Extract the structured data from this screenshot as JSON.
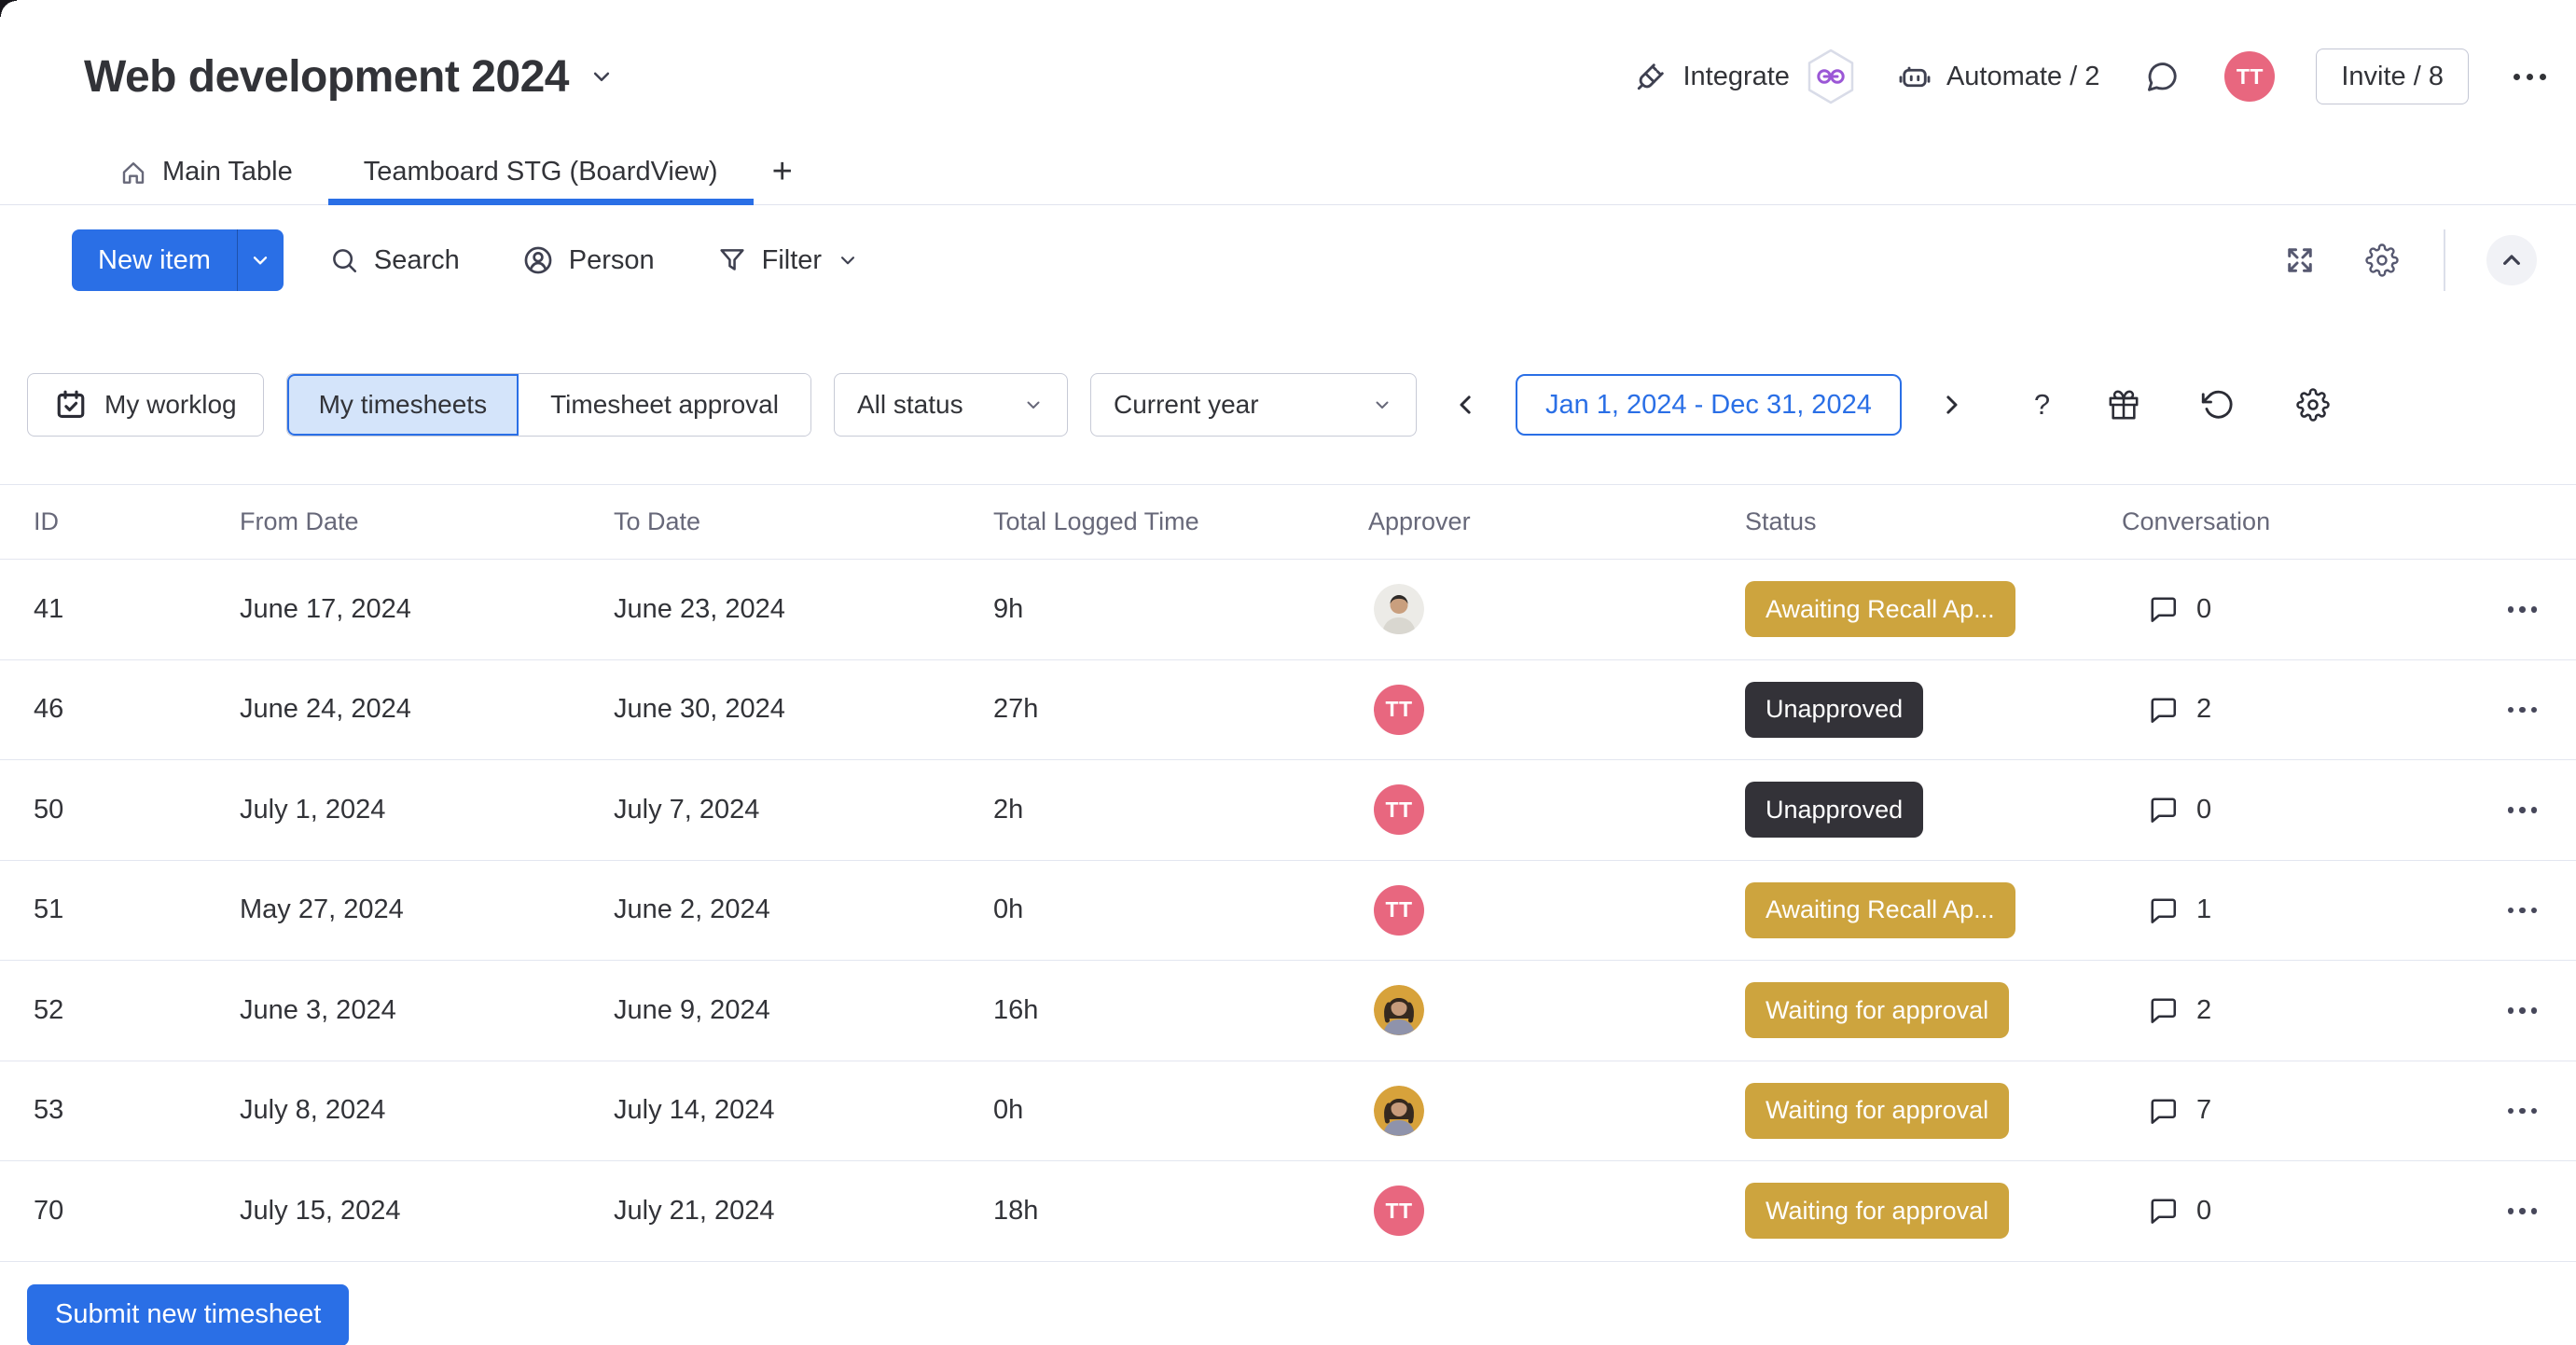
{
  "colors": {
    "accent": "#2a6fe6",
    "accent_light": "#d4e4fa",
    "gold": "#cda43e",
    "dark_chip": "#333238",
    "avatar_pink": "#e8677f",
    "text": "#323338",
    "muted": "#676879",
    "row_border": "#e3e6f0"
  },
  "header": {
    "title": "Web development 2024",
    "integrate_label": "Integrate",
    "automate_label": "Automate / 2",
    "invite_label": "Invite / 8",
    "avatar_initials": "TT"
  },
  "tabs": {
    "main_label": "Main Table",
    "board_label": "Teamboard STG (BoardView)",
    "add_label": "+"
  },
  "toolbar": {
    "new_item_label": "New item",
    "search_label": "Search",
    "person_label": "Person",
    "filter_label": "Filter"
  },
  "filters": {
    "my_worklog_label": "My worklog",
    "my_timesheets_label": "My timesheets",
    "timesheet_approval_label": "Timesheet approval",
    "status_value": "All status",
    "period_value": "Current year",
    "date_range_value": "Jan 1, 2024 - Dec 31, 2024",
    "help_label": "?"
  },
  "table": {
    "columns": [
      "ID",
      "From Date",
      "To Date",
      "Total Logged Time",
      "Approver",
      "Status",
      "Conversation"
    ],
    "rows": [
      {
        "id": "41",
        "from": "June 17, 2024",
        "to": "June 23, 2024",
        "total": "9h",
        "approver": {
          "type": "photo",
          "variant": "male"
        },
        "status": {
          "label": "Awaiting Recall Ap...",
          "color": "gold"
        },
        "conversation": "0"
      },
      {
        "id": "46",
        "from": "June 24, 2024",
        "to": "June 30, 2024",
        "total": "27h",
        "approver": {
          "type": "initials",
          "label": "TT"
        },
        "status": {
          "label": "Unapproved",
          "color": "dark"
        },
        "conversation": "2"
      },
      {
        "id": "50",
        "from": "July 1, 2024",
        "to": "July 7, 2024",
        "total": "2h",
        "approver": {
          "type": "initials",
          "label": "TT"
        },
        "status": {
          "label": "Unapproved",
          "color": "dark"
        },
        "conversation": "0"
      },
      {
        "id": "51",
        "from": "May 27, 2024",
        "to": "June 2, 2024",
        "total": "0h",
        "approver": {
          "type": "initials",
          "label": "TT"
        },
        "status": {
          "label": "Awaiting Recall Ap...",
          "color": "gold"
        },
        "conversation": "1"
      },
      {
        "id": "52",
        "from": "June 3, 2024",
        "to": "June 9, 2024",
        "total": "16h",
        "approver": {
          "type": "photo",
          "variant": "female"
        },
        "status": {
          "label": "Waiting for approval",
          "color": "gold"
        },
        "conversation": "2"
      },
      {
        "id": "53",
        "from": "July 8, 2024",
        "to": "July 14, 2024",
        "total": "0h",
        "approver": {
          "type": "photo",
          "variant": "female"
        },
        "status": {
          "label": "Waiting for approval",
          "color": "gold"
        },
        "conversation": "7"
      },
      {
        "id": "70",
        "from": "July 15, 2024",
        "to": "July 21, 2024",
        "total": "18h",
        "approver": {
          "type": "initials",
          "label": "TT"
        },
        "status": {
          "label": "Waiting for approval",
          "color": "gold"
        },
        "conversation": "0"
      }
    ]
  },
  "footer": {
    "submit_label": "Submit new timesheet"
  }
}
